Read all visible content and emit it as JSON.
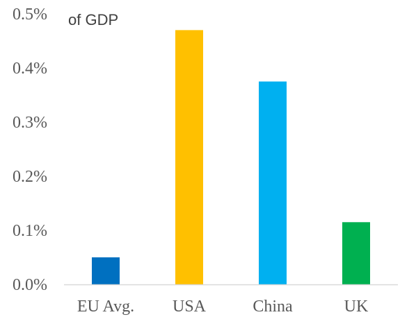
{
  "chart_data": {
    "type": "bar",
    "title": "",
    "unit_label": "of GDP",
    "xlabel": "",
    "ylabel": "",
    "categories": [
      "EU Avg.",
      "USA",
      "China",
      "UK"
    ],
    "values": [
      0.05,
      0.47,
      0.375,
      0.115
    ],
    "colors": [
      "#0070c0",
      "#ffc000",
      "#00b0f0",
      "#00b050"
    ],
    "ylim": [
      0,
      0.5
    ],
    "yticks": [
      {
        "value": 0.5,
        "label": "0.5%"
      },
      {
        "value": 0.4,
        "label": "0.4%"
      },
      {
        "value": 0.3,
        "label": "0.3%"
      },
      {
        "value": 0.2,
        "label": "0.2%"
      },
      {
        "value": 0.1,
        "label": "0.1%"
      },
      {
        "value": 0.0,
        "label": "0.0%"
      }
    ],
    "grid": false,
    "legend": "none"
  }
}
